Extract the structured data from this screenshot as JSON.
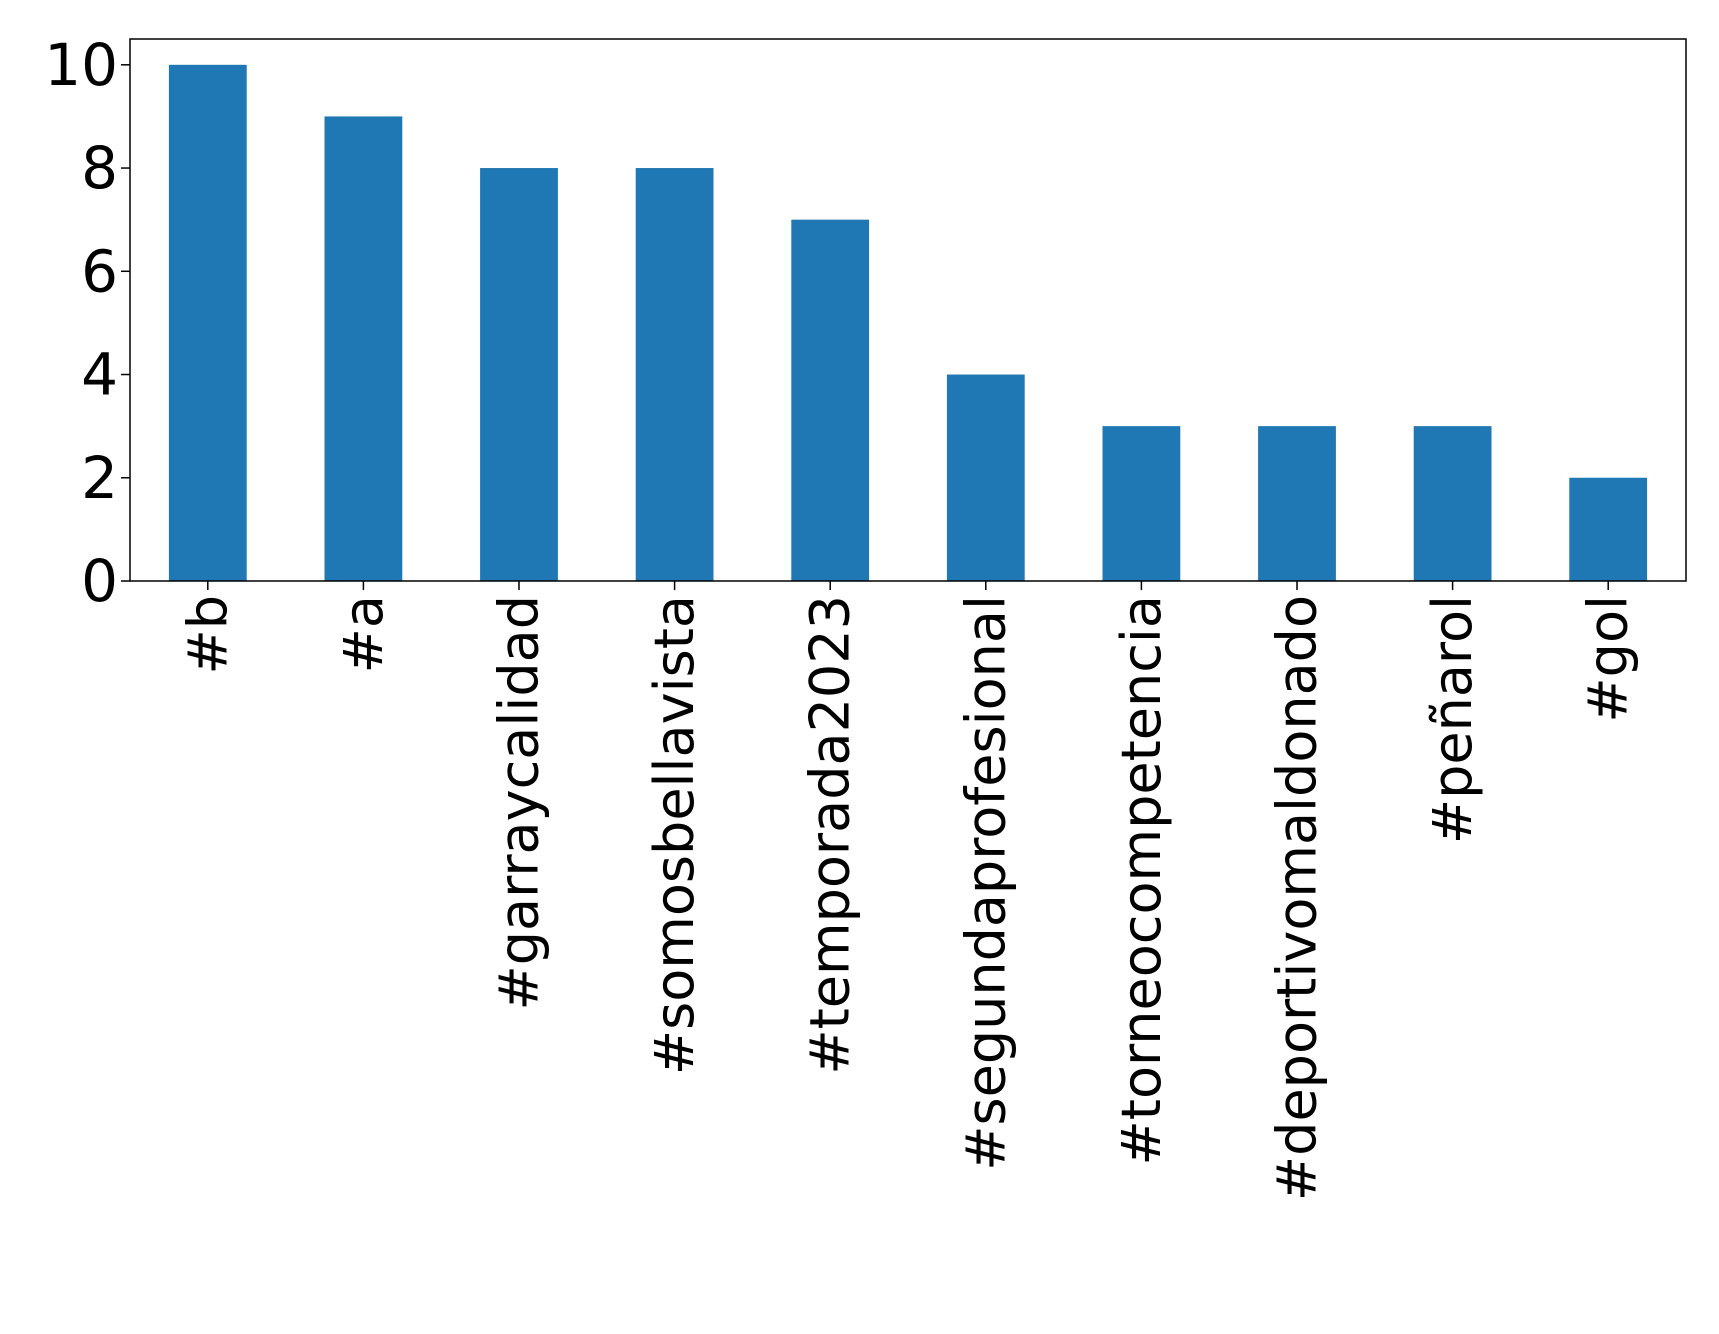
{
  "chart_data": {
    "type": "bar",
    "title": "",
    "xlabel": "",
    "ylabel": "",
    "categories": [
      "#b",
      "#a",
      "#garraycalidad",
      "#somosbellavista",
      "#temporada2023",
      "#segundaprofesional",
      "#torneocompetencia",
      "#deportivomaldonado",
      "#peñarol",
      "#gol"
    ],
    "values": [
      10,
      9,
      8,
      8,
      7,
      4,
      3,
      3,
      3,
      2
    ],
    "ylim": [
      0,
      10.5
    ],
    "yticks": [
      0,
      2,
      4,
      6,
      8,
      10
    ],
    "grid": false,
    "legend": "none",
    "bar_color": "#1f77b4"
  }
}
